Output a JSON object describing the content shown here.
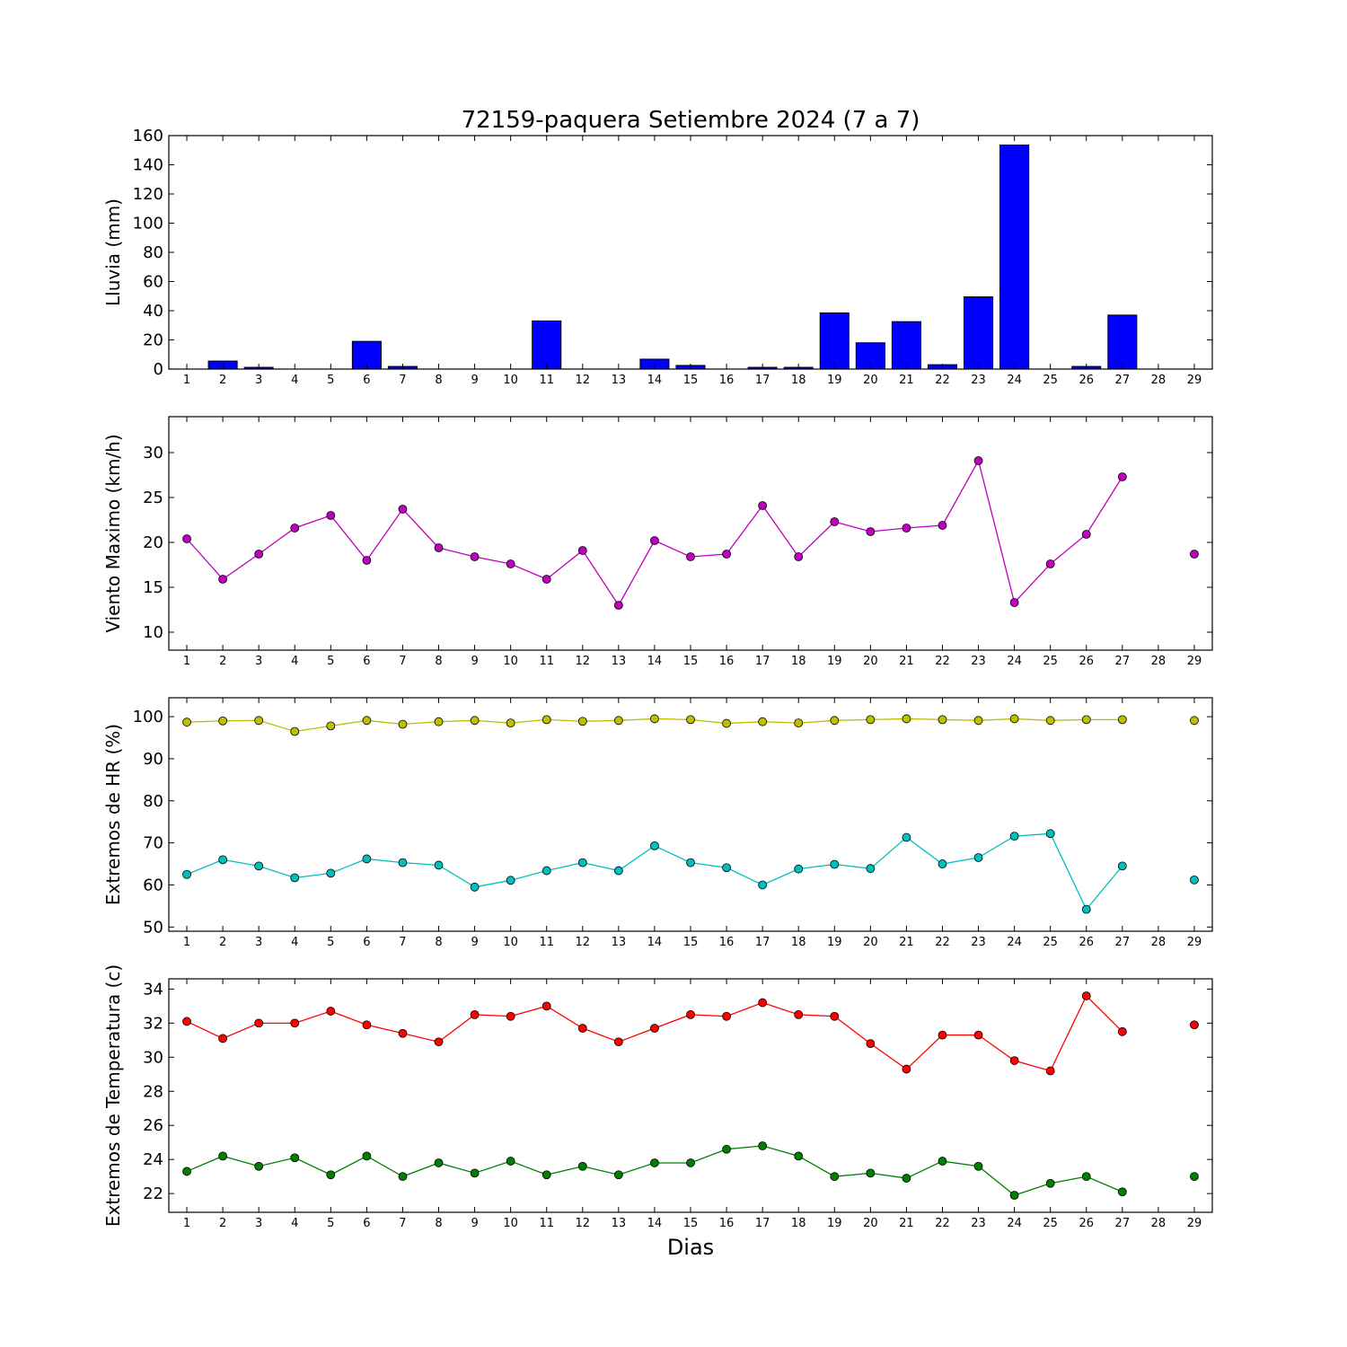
{
  "figure": {
    "title": "72159-paquera Setiembre 2024  (7 a 7)",
    "xlabel": "Dias"
  },
  "chart_data": [
    {
      "type": "bar",
      "ylabel": "Lluvia (mm)",
      "x": [
        1,
        2,
        3,
        4,
        5,
        6,
        7,
        8,
        9,
        10,
        11,
        12,
        13,
        14,
        15,
        16,
        17,
        18,
        19,
        20,
        21,
        22,
        23,
        24,
        25,
        26,
        27,
        28,
        29
      ],
      "values": [
        0,
        5.5,
        1.2,
        0,
        0,
        19,
        1.8,
        0,
        0,
        0,
        33,
        0,
        0,
        6.8,
        2.5,
        0,
        1.2,
        1.2,
        38.5,
        18,
        32.5,
        3,
        49.5,
        153.5,
        0,
        1.8,
        37,
        0,
        0
      ],
      "color": "#0000ff",
      "ylim": [
        0,
        160
      ],
      "yticks": [
        0,
        20,
        40,
        60,
        80,
        100,
        120,
        140,
        160
      ],
      "xlim": [
        0.5,
        29.5
      ],
      "xticks": [
        1,
        2,
        3,
        4,
        5,
        6,
        7,
        8,
        9,
        10,
        11,
        12,
        13,
        14,
        15,
        16,
        17,
        18,
        19,
        20,
        21,
        22,
        23,
        24,
        25,
        26,
        27,
        28,
        29
      ]
    },
    {
      "type": "line",
      "ylabel": "Viento Maximo (km/h)",
      "ylim": [
        8,
        34
      ],
      "yticks": [
        10,
        15,
        20,
        25,
        30
      ],
      "xlim": [
        0.5,
        29.5
      ],
      "xticks": [
        1,
        2,
        3,
        4,
        5,
        6,
        7,
        8,
        9,
        10,
        11,
        12,
        13,
        14,
        15,
        16,
        17,
        18,
        19,
        20,
        21,
        22,
        23,
        24,
        25,
        26,
        27,
        28,
        29
      ],
      "series": [
        {
          "color": "#bf00bf",
          "x": [
            1,
            2,
            3,
            4,
            5,
            6,
            7,
            8,
            9,
            10,
            11,
            12,
            13,
            14,
            15,
            16,
            17,
            18,
            19,
            20,
            21,
            22,
            23,
            24,
            25,
            26,
            27,
            28,
            29
          ],
          "values": [
            20.4,
            15.9,
            18.7,
            21.6,
            23,
            18,
            23.7,
            19.4,
            18.4,
            17.6,
            15.9,
            19.1,
            13,
            20.2,
            18.4,
            18.7,
            24.1,
            18.4,
            22.3,
            21.2,
            21.6,
            21.9,
            29.1,
            13.3,
            17.6,
            20.9,
            27.3,
            null,
            18.7
          ]
        }
      ]
    },
    {
      "type": "line",
      "ylabel": "Extremos de HR (%)",
      "ylim": [
        49,
        104.5
      ],
      "yticks": [
        50,
        60,
        70,
        80,
        90,
        100
      ],
      "xlim": [
        0.5,
        29.5
      ],
      "xticks": [
        1,
        2,
        3,
        4,
        5,
        6,
        7,
        8,
        9,
        10,
        11,
        12,
        13,
        14,
        15,
        16,
        17,
        18,
        19,
        20,
        21,
        22,
        23,
        24,
        25,
        26,
        27,
        28,
        29
      ],
      "series": [
        {
          "color": "#bfbf00",
          "x": [
            1,
            2,
            3,
            4,
            5,
            6,
            7,
            8,
            9,
            10,
            11,
            12,
            13,
            14,
            15,
            16,
            17,
            18,
            19,
            20,
            21,
            22,
            23,
            24,
            25,
            26,
            27,
            28,
            29
          ],
          "values": [
            98.7,
            99,
            99.1,
            96.5,
            97.8,
            99.1,
            98.2,
            98.8,
            99.1,
            98.5,
            99.3,
            98.9,
            99.1,
            99.5,
            99.3,
            98.4,
            98.8,
            98.5,
            99.1,
            99.3,
            99.5,
            99.3,
            99.1,
            99.5,
            99.1,
            99.3,
            99.3,
            null,
            99.1
          ]
        },
        {
          "color": "#00bfbf",
          "x": [
            1,
            2,
            3,
            4,
            5,
            6,
            7,
            8,
            9,
            10,
            11,
            12,
            13,
            14,
            15,
            16,
            17,
            18,
            19,
            20,
            21,
            22,
            23,
            24,
            25,
            26,
            27,
            28,
            29
          ],
          "values": [
            62.5,
            66,
            64.5,
            61.7,
            62.8,
            66.2,
            65.3,
            64.7,
            59.5,
            61.1,
            63.4,
            65.3,
            63.4,
            69.3,
            65.3,
            64.1,
            60,
            63.8,
            64.9,
            63.9,
            71.3,
            65,
            66.5,
            71.6,
            72.2,
            54.2,
            64.5,
            null,
            61.2
          ]
        }
      ]
    },
    {
      "type": "line",
      "ylabel": "Extremos de Temperatura (c)",
      "ylim": [
        20.9,
        34.6
      ],
      "yticks": [
        22,
        24,
        26,
        28,
        30,
        32,
        34
      ],
      "xlim": [
        0.5,
        29.5
      ],
      "xticks": [
        1,
        2,
        3,
        4,
        5,
        6,
        7,
        8,
        9,
        10,
        11,
        12,
        13,
        14,
        15,
        16,
        17,
        18,
        19,
        20,
        21,
        22,
        23,
        24,
        25,
        26,
        27,
        28,
        29
      ],
      "series": [
        {
          "color": "#ff0000",
          "x": [
            1,
            2,
            3,
            4,
            5,
            6,
            7,
            8,
            9,
            10,
            11,
            12,
            13,
            14,
            15,
            16,
            17,
            18,
            19,
            20,
            21,
            22,
            23,
            24,
            25,
            26,
            27,
            28,
            29
          ],
          "values": [
            32.1,
            31.1,
            32,
            32,
            32.7,
            31.9,
            31.4,
            30.9,
            32.5,
            32.4,
            33,
            31.7,
            30.9,
            31.7,
            32.5,
            32.4,
            33.2,
            32.5,
            32.4,
            30.8,
            29.3,
            31.3,
            31.3,
            29.8,
            29.2,
            33.6,
            31.5,
            null,
            31.9
          ]
        },
        {
          "color": "#007f00",
          "x": [
            1,
            2,
            3,
            4,
            5,
            6,
            7,
            8,
            9,
            10,
            11,
            12,
            13,
            14,
            15,
            16,
            17,
            18,
            19,
            20,
            21,
            22,
            23,
            24,
            25,
            26,
            27,
            28,
            29
          ],
          "values": [
            23.3,
            24.2,
            23.6,
            24.1,
            23.1,
            24.2,
            23,
            23.8,
            23.2,
            23.9,
            23.1,
            23.6,
            23.1,
            23.8,
            23.8,
            24.6,
            24.8,
            24.2,
            23,
            23.2,
            22.9,
            23.9,
            23.6,
            21.9,
            22.6,
            23,
            22.1,
            null,
            23
          ]
        }
      ]
    }
  ]
}
